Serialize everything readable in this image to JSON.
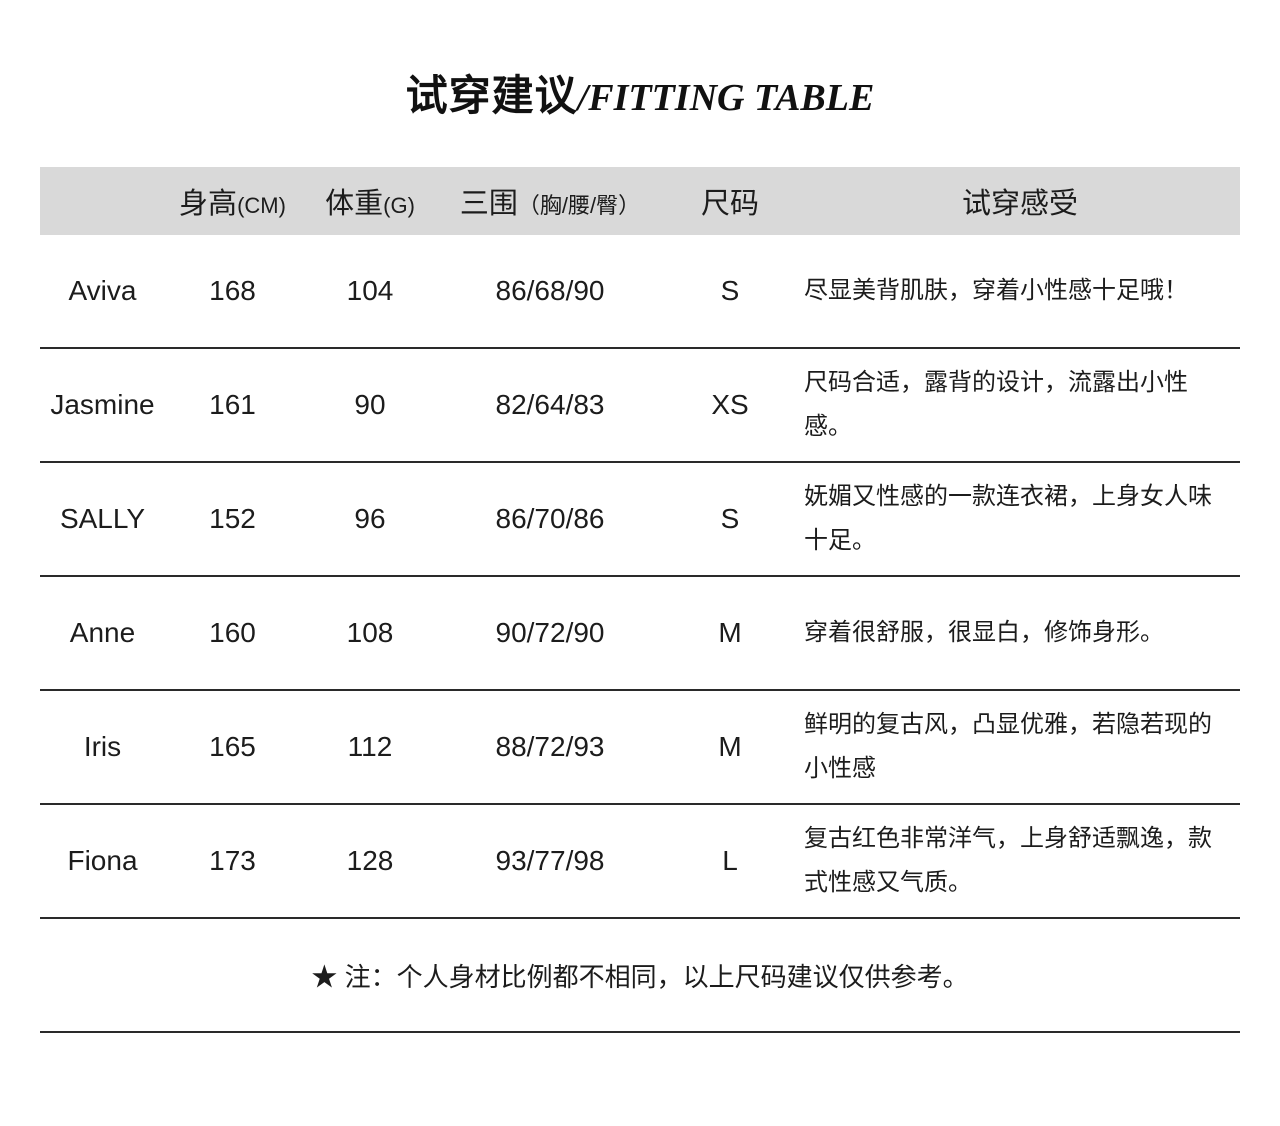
{
  "title": {
    "zh": "试穿建议",
    "sep": "/",
    "en": "FITTING TABLE"
  },
  "table": {
    "headers": {
      "height": {
        "main": "身高",
        "sub": "(CM)"
      },
      "weight": {
        "main": "体重",
        "sub": "(G)"
      },
      "measurements": {
        "main": "三围",
        "sub": "（胸/腰/臀）"
      },
      "size": {
        "main": "尺码"
      },
      "feeling": {
        "main": "试穿感受"
      }
    },
    "rows": [
      {
        "name": "Aviva",
        "height": "168",
        "weight": "104",
        "measurements": "86/68/90",
        "size": "S",
        "feeling": "尽显美背肌肤，穿着小性感十足哦！"
      },
      {
        "name": "Jasmine",
        "height": "161",
        "weight": "90",
        "measurements": "82/64/83",
        "size": "XS",
        "feeling": "尺码合适，露背的设计，流露出小性感。"
      },
      {
        "name": "SALLY",
        "height": "152",
        "weight": "96",
        "measurements": "86/70/86",
        "size": "S",
        "feeling": "妩媚又性感的一款连衣裙，上身女人味十足。"
      },
      {
        "name": "Anne",
        "height": "160",
        "weight": "108",
        "measurements": "90/72/90",
        "size": "M",
        "feeling": "穿着很舒服，很显白，修饰身形。"
      },
      {
        "name": "Iris",
        "height": "165",
        "weight": "112",
        "measurements": "88/72/93",
        "size": "M",
        "feeling": "鲜明的复古风，凸显优雅，若隐若现的小性感"
      },
      {
        "name": "Fiona",
        "height": "173",
        "weight": "128",
        "measurements": "93/77/98",
        "size": "L",
        "feeling": "复古红色非常洋气，上身舒适飘逸，款式性感又气质。"
      }
    ],
    "note": "★ 注：个人身材比例都不相同，以上尺码建议仅供参考。"
  },
  "colors": {
    "header_bg": "#d9d9d9",
    "text": "#1c1c1c",
    "line": "#2a2a2a"
  }
}
